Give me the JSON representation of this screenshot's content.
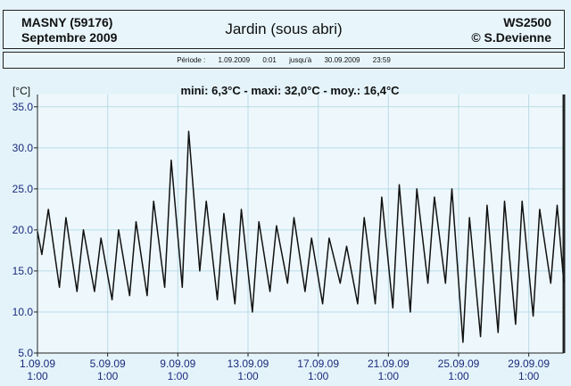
{
  "header": {
    "station": "MASNY (59176)",
    "month": "Septembre 2009",
    "title": "Jardin (sous abri)",
    "device": "WS2500",
    "copyright": "© S.Devienne"
  },
  "period": {
    "label": "Période :",
    "start_date": "1.09.2009",
    "start_time": "0:01",
    "until": "jusqu'à",
    "end_date": "30.09.2009",
    "end_time": "23:59"
  },
  "chart_data": {
    "type": "line",
    "ylabel": "[°C]",
    "stats": "mini: 6,3°C - maxi: 32,0°C - moy.: 16,4°C",
    "ylim": [
      5.0,
      36.5
    ],
    "yticks": [
      "5.0",
      "10.0",
      "15.0",
      "20.0",
      "25.0",
      "30.0",
      "35.0"
    ],
    "xlim": [
      "01.09.2009 00:00",
      "30.09.2009 23:59"
    ],
    "xticks": [
      {
        "date": "1.09.09",
        "time": "1:00"
      },
      {
        "date": "5.09.09",
        "time": "1:00"
      },
      {
        "date": "9.09.09",
        "time": "1:00"
      },
      {
        "date": "13.09.09",
        "time": "1:00"
      },
      {
        "date": "17.09.09",
        "time": "1:00"
      },
      {
        "date": "21.09.09",
        "time": "1:00"
      },
      {
        "date": "25.09.09",
        "time": "1:00"
      },
      {
        "date": "29.09.09",
        "time": "1:00"
      }
    ],
    "grid": true,
    "series": [
      {
        "color": "#111111",
        "x_dates": [
          "1.09",
          "2.09",
          "3.09",
          "4.09",
          "5.09",
          "6.09",
          "7.09",
          "8.09",
          "9.09",
          "10.09",
          "11.09",
          "12.09",
          "13.09",
          "14.09",
          "15.09",
          "16.09",
          "17.09",
          "18.09",
          "19.09",
          "20.09",
          "21.09",
          "22.09",
          "23.09",
          "24.09",
          "25.09",
          "26.09",
          "27.09",
          "28.09",
          "29.09",
          "30.09"
        ],
        "daily_min": [
          17.0,
          13.0,
          12.5,
          12.5,
          11.5,
          12.0,
          12.0,
          13.0,
          13.0,
          15.0,
          11.5,
          11.0,
          10.0,
          12.5,
          13.5,
          12.5,
          11.0,
          13.5,
          11.0,
          11.0,
          10.5,
          10.0,
          13.5,
          13.5,
          6.3,
          7.0,
          7.5,
          8.5,
          9.5,
          13.5
        ],
        "daily_max": [
          22.5,
          21.5,
          20.0,
          19.0,
          20.0,
          21.0,
          23.5,
          28.5,
          32.0,
          23.5,
          22.0,
          22.5,
          21.0,
          20.5,
          21.5,
          19.0,
          19.0,
          18.0,
          21.5,
          24.0,
          25.5,
          25.0,
          24.0,
          25.0,
          21.5,
          23.0,
          23.5,
          23.5,
          22.5,
          23.0
        ]
      }
    ]
  }
}
